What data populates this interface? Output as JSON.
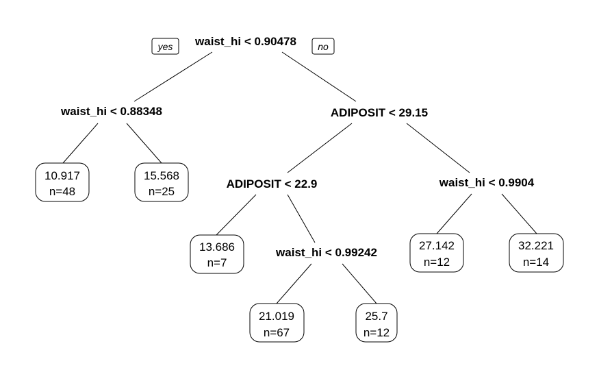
{
  "branch_labels": {
    "yes": "yes",
    "no": "no"
  },
  "splits": {
    "root": "waist_hi < 0.90478",
    "left": "waist_hi < 0.88348",
    "right": "ADIPOSIT < 29.15",
    "right_left": "ADIPOSIT < 22.9",
    "right_left_right": "waist_hi < 0.99242",
    "right_right": "waist_hi < 0.9904"
  },
  "leaves": {
    "l1": {
      "value": "10.917",
      "n": "n=48"
    },
    "l2": {
      "value": "15.568",
      "n": "n=25"
    },
    "l3": {
      "value": "13.686",
      "n": "n=7"
    },
    "l4": {
      "value": "21.019",
      "n": "n=67"
    },
    "l5": {
      "value": "25.7",
      "n": "n=12"
    },
    "l6": {
      "value": "27.142",
      "n": "n=12"
    },
    "l7": {
      "value": "32.221",
      "n": "n=14"
    }
  }
}
